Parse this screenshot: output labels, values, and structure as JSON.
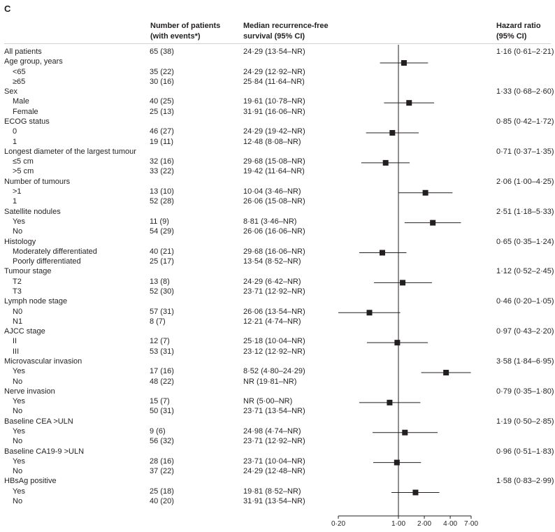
{
  "panel_label": "C",
  "headers": {
    "patients_1": "Number of patients",
    "patients_2": "(with events*)",
    "rfs_1": "Median recurrence-free",
    "rfs_2": "survival (95% CI)",
    "hr_1": "Hazard ratio",
    "hr_2": "(95% CI)"
  },
  "rows": [
    {
      "label": "All patients",
      "indent": false,
      "n": "65 (38)",
      "rfs": "24·29 (13·54–NR)",
      "hr": "1·16 (0·61–2·21)"
    },
    {
      "label": "Age group, years",
      "indent": false
    },
    {
      "label": "<65",
      "indent": true,
      "n": "35 (22)",
      "rfs": "24·29 (12·92–NR)"
    },
    {
      "label": "≥65",
      "indent": true,
      "n": "30 (16)",
      "rfs": "25·84 (11·64–NR)"
    },
    {
      "label": "Sex",
      "indent": false,
      "hr": "1·33 (0·68–2·60)"
    },
    {
      "label": "Male",
      "indent": true,
      "n": "40 (25)",
      "rfs": "19·61 (10·78–NR)"
    },
    {
      "label": "Female",
      "indent": true,
      "n": "25 (13)",
      "rfs": "31·91 (16·06–NR)"
    },
    {
      "label": "ECOG status",
      "indent": false,
      "hr": "0·85 (0·42–1·72)"
    },
    {
      "label": "0",
      "indent": true,
      "n": "46 (27)",
      "rfs": "24·29 (19·42–NR)"
    },
    {
      "label": "1",
      "indent": true,
      "n": "19 (11)",
      "rfs": "12·48 (8·08–NR)"
    },
    {
      "label": "Longest diameter of the largest tumour",
      "indent": false,
      "hr": "0·71 (0·37–1·35)"
    },
    {
      "label": "≤5 cm",
      "indent": true,
      "n": "32 (16)",
      "rfs": "29·68 (15·08–NR)"
    },
    {
      "label": ">5 cm",
      "indent": true,
      "n": "33 (22)",
      "rfs": "19·42 (11·64–NR)"
    },
    {
      "label": "Number of tumours",
      "indent": false,
      "hr": "2·06 (1·00–4·25)"
    },
    {
      "label": ">1",
      "indent": true,
      "n": "13 (10)",
      "rfs": "10·04 (3·46–NR)"
    },
    {
      "label": "1",
      "indent": true,
      "n": "52 (28)",
      "rfs": "26·06 (15·08–NR)"
    },
    {
      "label": "Satellite nodules",
      "indent": false,
      "hr": "2·51 (1·18–5·33)"
    },
    {
      "label": "Yes",
      "indent": true,
      "n": "11 (9)",
      "rfs": "8·81 (3·46–NR)"
    },
    {
      "label": "No",
      "indent": true,
      "n": "54 (29)",
      "rfs": "26·06 (16·06–NR)"
    },
    {
      "label": "Histology",
      "indent": false,
      "hr": "0·65 (0·35–1·24)"
    },
    {
      "label": "Moderately differentiated",
      "indent": true,
      "n": "40 (21)",
      "rfs": "29·68 (16·06–NR)"
    },
    {
      "label": "Poorly differentiated",
      "indent": true,
      "n": "25 (17)",
      "rfs": "13·54 (8·52–NR)"
    },
    {
      "label": "Tumour stage",
      "indent": false,
      "hr": "1·12 (0·52–2·45)"
    },
    {
      "label": "T2",
      "indent": true,
      "n": "13 (8)",
      "rfs": "24·29 (6·42–NR)"
    },
    {
      "label": "T3",
      "indent": true,
      "n": "52 (30)",
      "rfs": "23·71 (12·92–NR)"
    },
    {
      "label": "Lymph node stage",
      "indent": false,
      "hr": "0·46 (0·20–1·05)"
    },
    {
      "label": "N0",
      "indent": true,
      "n": "57 (31)",
      "rfs": "26·06 (13·54–NR)"
    },
    {
      "label": "N1",
      "indent": true,
      "n": "8 (7)",
      "rfs": "12·21 (4·74–NR)"
    },
    {
      "label": "AJCC stage",
      "indent": false,
      "hr": "0·97 (0·43–2·20)"
    },
    {
      "label": "II",
      "indent": true,
      "n": "12 (7)",
      "rfs": "25·18 (10·04–NR)"
    },
    {
      "label": "III",
      "indent": true,
      "n": "53 (31)",
      "rfs": "23·12 (12·92–NR)"
    },
    {
      "label": "Microvascular invasion",
      "indent": false,
      "hr": "3·58 (1·84–6·95)"
    },
    {
      "label": "Yes",
      "indent": true,
      "n": "17 (16)",
      "rfs": "8·52 (4·80–24·29)"
    },
    {
      "label": "No",
      "indent": true,
      "n": "48 (22)",
      "rfs": "NR (19·81–NR)"
    },
    {
      "label": "Nerve invasion",
      "indent": false,
      "hr": "0·79 (0·35–1·80)"
    },
    {
      "label": "Yes",
      "indent": true,
      "n": "15 (7)",
      "rfs": "NR (5·00–NR)"
    },
    {
      "label": "No",
      "indent": true,
      "n": "50 (31)",
      "rfs": "23·71 (13·54–NR)"
    },
    {
      "label": "Baseline CEA >ULN",
      "indent": false,
      "hr": "1·19 (0·50–2·85)"
    },
    {
      "label": "Yes",
      "indent": true,
      "n": "9 (6)",
      "rfs": "24·98 (4·74–NR)"
    },
    {
      "label": "No",
      "indent": true,
      "n": "56 (32)",
      "rfs": "23·71 (12·92–NR)"
    },
    {
      "label": "Baseline CA19-9 >ULN",
      "indent": false,
      "hr": "0·96 (0·51–1·83)"
    },
    {
      "label": "Yes",
      "indent": true,
      "n": "28 (16)",
      "rfs": "23·71 (10·04–NR)"
    },
    {
      "label": "No",
      "indent": true,
      "n": "37 (22)",
      "rfs": "24·29 (12·48–NR)"
    },
    {
      "label": "HBsAg positive",
      "indent": false,
      "hr": "1·58 (0·83–2·99)"
    },
    {
      "label": "Yes",
      "indent": true,
      "n": "25 (18)",
      "rfs": "19·81 (8·52–NR)"
    },
    {
      "label": "No",
      "indent": true,
      "n": "40 (20)",
      "rfs": "31·91 (13·54–NR)"
    }
  ],
  "chart_data": {
    "type": "scatter",
    "title": "",
    "xlabel": "",
    "ylabel": "",
    "x_scale": "log",
    "xlim": [
      0.2,
      7.0
    ],
    "reference_line": 1.0,
    "ticks": [
      0.2,
      1.0,
      2.0,
      4.0,
      7.0
    ],
    "tick_labels": [
      "0·20",
      "1·00",
      "2·00",
      "4·00",
      "7·00"
    ],
    "marker_color": "#231f20",
    "series": [
      {
        "name": "All patients",
        "hr": 1.16,
        "lo": 0.61,
        "hi": 2.21
      },
      {
        "name": "Sex",
        "hr": 1.33,
        "lo": 0.68,
        "hi": 2.6
      },
      {
        "name": "ECOG status",
        "hr": 0.85,
        "lo": 0.42,
        "hi": 1.72
      },
      {
        "name": "Longest diameter of the largest tumour",
        "hr": 0.71,
        "lo": 0.37,
        "hi": 1.35
      },
      {
        "name": "Number of tumours",
        "hr": 2.06,
        "lo": 1.0,
        "hi": 4.25
      },
      {
        "name": "Satellite nodules",
        "hr": 2.51,
        "lo": 1.18,
        "hi": 5.33
      },
      {
        "name": "Histology",
        "hr": 0.65,
        "lo": 0.35,
        "hi": 1.24
      },
      {
        "name": "Tumour stage",
        "hr": 1.12,
        "lo": 0.52,
        "hi": 2.45
      },
      {
        "name": "Lymph node stage",
        "hr": 0.46,
        "lo": 0.2,
        "hi": 1.05
      },
      {
        "name": "AJCC stage",
        "hr": 0.97,
        "lo": 0.43,
        "hi": 2.2
      },
      {
        "name": "Microvascular invasion",
        "hr": 3.58,
        "lo": 1.84,
        "hi": 6.95
      },
      {
        "name": "Nerve invasion",
        "hr": 0.79,
        "lo": 0.35,
        "hi": 1.8
      },
      {
        "name": "Baseline CEA >ULN",
        "hr": 1.19,
        "lo": 0.5,
        "hi": 2.85
      },
      {
        "name": "Baseline CA19-9 >ULN",
        "hr": 0.96,
        "lo": 0.51,
        "hi": 1.83
      },
      {
        "name": "HBsAg positive",
        "hr": 1.58,
        "lo": 0.83,
        "hi": 2.99
      }
    ]
  }
}
